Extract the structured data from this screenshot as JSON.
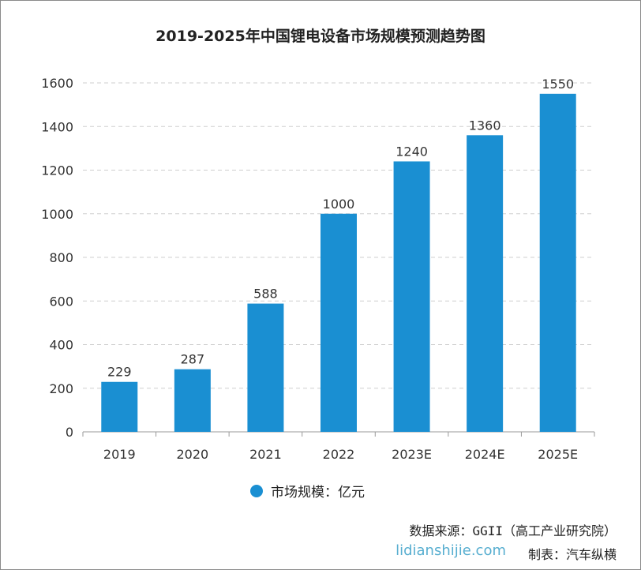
{
  "chart_data": {
    "type": "bar",
    "title": "2019-2025年中国锂电设备市场规模预测趋势图",
    "categories": [
      "2019",
      "2020",
      "2021",
      "2022",
      "2023E",
      "2024E",
      "2025E"
    ],
    "series": [
      {
        "name": "市场规模：亿元",
        "values": [
          229,
          287,
          588,
          1000,
          1240,
          1360,
          1550
        ]
      }
    ],
    "ylim": [
      0,
      1600
    ],
    "yticks": [
      0,
      200,
      400,
      600,
      800,
      1000,
      1200,
      1400,
      1600
    ],
    "grid": true,
    "legend": "bottom",
    "bar_color": "#1a8fd2"
  },
  "footer": {
    "source": "数据来源：GGII（高工产业研究院）",
    "maker": "制表：汽车纵横",
    "watermark": "lidianshijie.com"
  }
}
